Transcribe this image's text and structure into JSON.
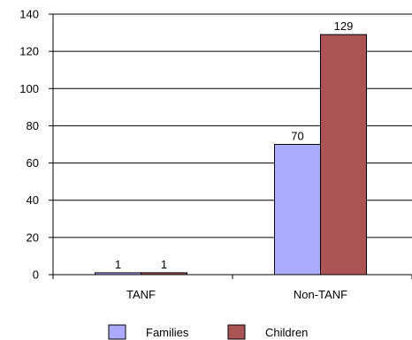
{
  "chart_data": {
    "type": "bar",
    "categories": [
      "TANF",
      "Non-TANF"
    ],
    "series": [
      {
        "name": "Families",
        "values": [
          1,
          70
        ],
        "color": "#aaaaff"
      },
      {
        "name": "Children",
        "values": [
          1,
          129
        ],
        "color": "#ac5454"
      }
    ],
    "ylim": [
      0,
      140
    ],
    "yticks": [
      0,
      20,
      40,
      60,
      80,
      100,
      120,
      140
    ],
    "grid": true,
    "legend_placement": "bottom"
  }
}
